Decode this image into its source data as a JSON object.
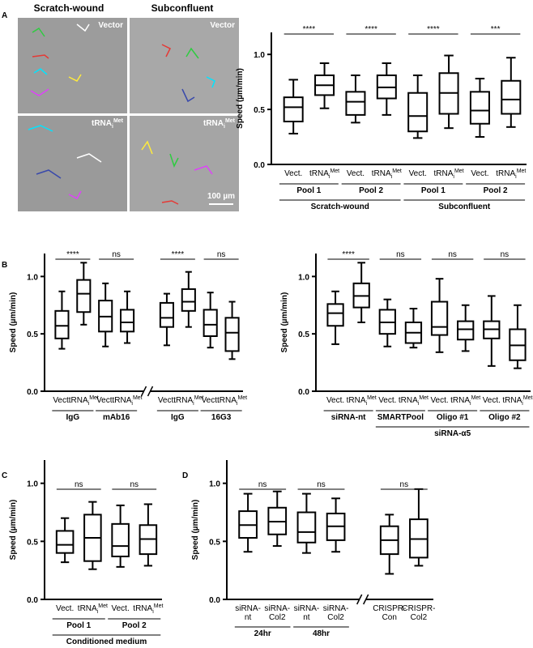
{
  "micrographs": {
    "columns": [
      "Scratch-wound",
      "Subconfluent"
    ],
    "rows": [
      "Vector",
      {
        "text": "tRNA",
        "sub": "i",
        "sup": "Met"
      }
    ],
    "scale_bar": "100 µm"
  },
  "chart_data": [
    {
      "type": "box",
      "panel": "A",
      "ylabel": "Speed (µm/min)",
      "ylim": [
        0,
        1.2
      ],
      "yticks": [
        {
          "value": 0,
          "label": "0.0"
        },
        {
          "value": 0.5,
          "label": "0.5"
        },
        {
          "value": 1,
          "label": "1.0"
        }
      ],
      "categories": [
        "Vect.",
        {
          "text": "tRNA",
          "sub": "i",
          "sup": "Met"
        },
        "Vect.",
        {
          "text": "tRNA",
          "sub": "i",
          "sup": "Met"
        },
        "Vect.",
        {
          "text": "tRNA",
          "sub": "i",
          "sup": "Met"
        },
        "Vect.",
        {
          "text": "tRNA",
          "sub": "i",
          "sup": "Met"
        }
      ],
      "boxes": [
        {
          "min": 0.28,
          "q1": 0.39,
          "median": 0.52,
          "q3": 0.61,
          "max": 0.77
        },
        {
          "min": 0.51,
          "q1": 0.63,
          "median": 0.72,
          "q3": 0.81,
          "max": 0.92
        },
        {
          "min": 0.38,
          "q1": 0.45,
          "median": 0.57,
          "q3": 0.66,
          "max": 0.81
        },
        {
          "min": 0.45,
          "q1": 0.6,
          "median": 0.7,
          "q3": 0.81,
          "max": 0.92
        },
        {
          "min": 0.24,
          "q1": 0.3,
          "median": 0.44,
          "q3": 0.65,
          "max": 0.81
        },
        {
          "min": 0.33,
          "q1": 0.46,
          "median": 0.65,
          "q3": 0.83,
          "max": 0.99
        },
        {
          "min": 0.25,
          "q1": 0.37,
          "median": 0.49,
          "q3": 0.66,
          "max": 0.78
        },
        {
          "min": 0.34,
          "q1": 0.46,
          "median": 0.59,
          "q3": 0.76,
          "max": 0.97
        }
      ],
      "significance": [
        {
          "from": 0,
          "to": 1,
          "label": "****"
        },
        {
          "from": 2,
          "to": 3,
          "label": "****"
        },
        {
          "from": 4,
          "to": 5,
          "label": "****"
        },
        {
          "from": 6,
          "to": 7,
          "label": "***"
        }
      ],
      "groups": [
        {
          "from": 0,
          "to": 1,
          "label": "Pool 1"
        },
        {
          "from": 2,
          "to": 3,
          "label": "Pool 2"
        },
        {
          "from": 4,
          "to": 5,
          "label": "Pool 1"
        },
        {
          "from": 6,
          "to": 7,
          "label": "Pool 2"
        }
      ],
      "supergroups": [
        {
          "from": 0,
          "to": 3,
          "label": "Scratch-wound"
        },
        {
          "from": 4,
          "to": 7,
          "label": "Subconfluent"
        }
      ]
    },
    {
      "type": "box",
      "panel": "B",
      "ylabel": "Speed (µm/min)",
      "ylim": [
        0,
        1.2
      ],
      "axis_break": 4,
      "yticks": [
        {
          "value": 0,
          "label": "0.0"
        },
        {
          "value": 0.5,
          "label": "0.5"
        },
        {
          "value": 1,
          "label": "1.0"
        }
      ],
      "categories": [
        "Vect.",
        {
          "text": "tRNA",
          "sub": "i",
          "sup": "Met"
        },
        "Vect.",
        {
          "text": "tRNA",
          "sub": "i",
          "sup": "Met"
        },
        "Vect.",
        {
          "text": "tRNA",
          "sub": "i",
          "sup": "Met"
        },
        "Vect.",
        {
          "text": "tRNA",
          "sub": "i",
          "sup": "Met"
        }
      ],
      "boxes": [
        {
          "min": 0.37,
          "q1": 0.46,
          "median": 0.57,
          "q3": 0.7,
          "max": 0.87
        },
        {
          "min": 0.58,
          "q1": 0.69,
          "median": 0.85,
          "q3": 0.97,
          "max": 1.12
        },
        {
          "min": 0.39,
          "q1": 0.52,
          "median": 0.65,
          "q3": 0.79,
          "max": 0.94
        },
        {
          "min": 0.42,
          "q1": 0.52,
          "median": 0.6,
          "q3": 0.71,
          "max": 0.87
        },
        {
          "min": 0.4,
          "q1": 0.56,
          "median": 0.64,
          "q3": 0.77,
          "max": 0.85
        },
        {
          "min": 0.56,
          "q1": 0.7,
          "median": 0.78,
          "q3": 0.89,
          "max": 1.04
        },
        {
          "min": 0.38,
          "q1": 0.48,
          "median": 0.58,
          "q3": 0.71,
          "max": 0.86
        },
        {
          "min": 0.28,
          "q1": 0.35,
          "median": 0.51,
          "q3": 0.64,
          "max": 0.78
        }
      ],
      "significance": [
        {
          "from": 0,
          "to": 1,
          "label": "****"
        },
        {
          "from": 2,
          "to": 3,
          "label": "ns"
        },
        {
          "from": 4,
          "to": 5,
          "label": "****"
        },
        {
          "from": 6,
          "to": 7,
          "label": "ns"
        }
      ],
      "groups": [
        {
          "from": 0,
          "to": 1,
          "label": "IgG"
        },
        {
          "from": 2,
          "to": 3,
          "label": "mAb16"
        },
        {
          "from": 4,
          "to": 5,
          "label": "IgG"
        },
        {
          "from": 6,
          "to": 7,
          "label": "16G3"
        }
      ]
    },
    {
      "type": "box",
      "ylabel": "Speed (µm/min)",
      "ylim": [
        0,
        1.2
      ],
      "yticks": [
        {
          "value": 0,
          "label": "0.0"
        },
        {
          "value": 0.5,
          "label": "0.5"
        },
        {
          "value": 1,
          "label": "1.0"
        }
      ],
      "categories": [
        "Vect.",
        {
          "text": "tRNA",
          "sub": "i",
          "sup": "Met"
        },
        "Vect.",
        {
          "text": "tRNA",
          "sub": "i",
          "sup": "Met"
        },
        "Vect.",
        {
          "text": "tRNA",
          "sub": "i",
          "sup": "Met"
        },
        "Vect.",
        {
          "text": "tRNA",
          "sub": "i",
          "sup": "Met"
        }
      ],
      "boxes": [
        {
          "min": 0.41,
          "q1": 0.57,
          "median": 0.68,
          "q3": 0.76,
          "max": 0.87
        },
        {
          "min": 0.6,
          "q1": 0.73,
          "median": 0.83,
          "q3": 0.94,
          "max": 1.12
        },
        {
          "min": 0.39,
          "q1": 0.5,
          "median": 0.6,
          "q3": 0.71,
          "max": 0.8
        },
        {
          "min": 0.38,
          "q1": 0.42,
          "median": 0.51,
          "q3": 0.6,
          "max": 0.72
        },
        {
          "min": 0.34,
          "q1": 0.49,
          "median": 0.56,
          "q3": 0.78,
          "max": 0.98
        },
        {
          "min": 0.35,
          "q1": 0.45,
          "median": 0.54,
          "q3": 0.61,
          "max": 0.75
        },
        {
          "min": 0.22,
          "q1": 0.46,
          "median": 0.54,
          "q3": 0.61,
          "max": 0.83
        },
        {
          "min": 0.2,
          "q1": 0.27,
          "median": 0.4,
          "q3": 0.54,
          "max": 0.75
        }
      ],
      "significance": [
        {
          "from": 0,
          "to": 1,
          "label": "****"
        },
        {
          "from": 2,
          "to": 3,
          "label": "ns"
        },
        {
          "from": 4,
          "to": 5,
          "label": "ns"
        },
        {
          "from": 6,
          "to": 7,
          "label": "ns"
        }
      ],
      "groups": [
        {
          "from": 0,
          "to": 1,
          "label": "siRNA-nt"
        },
        {
          "from": 2,
          "to": 3,
          "label": "SMARTPool"
        },
        {
          "from": 4,
          "to": 5,
          "label": "Oligo #1"
        },
        {
          "from": 6,
          "to": 7,
          "label": "Oligo #2"
        }
      ],
      "supergroups": [
        {
          "from": 2,
          "to": 7,
          "label": "siRNA-α5"
        }
      ]
    },
    {
      "type": "box",
      "panel": "C",
      "ylabel": "Speed (µm/min)",
      "ylim": [
        0,
        1.2
      ],
      "yticks": [
        {
          "value": 0,
          "label": "0.0"
        },
        {
          "value": 0.5,
          "label": "0.5"
        },
        {
          "value": 1,
          "label": "1.0"
        }
      ],
      "categories": [
        "Vect.",
        {
          "text": "tRNA",
          "sub": "i",
          "sup": "Met"
        },
        "Vect.",
        {
          "text": "tRNA",
          "sub": "i",
          "sup": "Met"
        }
      ],
      "boxes": [
        {
          "min": 0.32,
          "q1": 0.4,
          "median": 0.47,
          "q3": 0.59,
          "max": 0.7
        },
        {
          "min": 0.26,
          "q1": 0.33,
          "median": 0.53,
          "q3": 0.73,
          "max": 0.84
        },
        {
          "min": 0.28,
          "q1": 0.37,
          "median": 0.46,
          "q3": 0.65,
          "max": 0.81
        },
        {
          "min": 0.29,
          "q1": 0.39,
          "median": 0.52,
          "q3": 0.64,
          "max": 0.82
        }
      ],
      "significance": [
        {
          "from": 0,
          "to": 1,
          "label": "ns"
        },
        {
          "from": 2,
          "to": 3,
          "label": "ns"
        }
      ],
      "groups": [
        {
          "from": 0,
          "to": 1,
          "label": "Pool 1"
        },
        {
          "from": 2,
          "to": 3,
          "label": "Pool 2"
        }
      ],
      "supergroups": [
        {
          "from": 0,
          "to": 3,
          "label": "Conditioned medium"
        }
      ]
    },
    {
      "type": "box",
      "panel": "D",
      "ylabel": "Speed (µm/min)",
      "ylim": [
        0,
        1.2
      ],
      "axis_break": 4,
      "yticks": [
        {
          "value": 0,
          "label": "0.0"
        },
        {
          "value": 0.5,
          "label": "0.5"
        },
        {
          "value": 1,
          "label": "1.0"
        }
      ],
      "categories": [
        {
          "lines": [
            "siRNA-",
            "nt"
          ]
        },
        {
          "lines": [
            "siRNA-",
            "Col2"
          ]
        },
        {
          "lines": [
            "siRNA-",
            "nt"
          ]
        },
        {
          "lines": [
            "siRNA-",
            "Col2"
          ]
        },
        {
          "lines": [
            "CRISPR-",
            "Con"
          ]
        },
        {
          "lines": [
            "CRISPR-",
            "Col2"
          ]
        }
      ],
      "boxes": [
        {
          "min": 0.41,
          "q1": 0.53,
          "median": 0.64,
          "q3": 0.76,
          "max": 0.91
        },
        {
          "min": 0.46,
          "q1": 0.56,
          "median": 0.67,
          "q3": 0.79,
          "max": 0.93
        },
        {
          "min": 0.4,
          "q1": 0.49,
          "median": 0.58,
          "q3": 0.75,
          "max": 0.91
        },
        {
          "min": 0.41,
          "q1": 0.51,
          "median": 0.63,
          "q3": 0.74,
          "max": 0.87
        },
        {
          "min": 0.22,
          "q1": 0.39,
          "median": 0.51,
          "q3": 0.63,
          "max": 0.73
        },
        {
          "min": 0.29,
          "q1": 0.36,
          "median": 0.52,
          "q3": 0.69,
          "max": 0.95
        }
      ],
      "significance": [
        {
          "from": 0,
          "to": 1,
          "label": "ns"
        },
        {
          "from": 2,
          "to": 3,
          "label": "ns"
        },
        {
          "from": 4,
          "to": 5,
          "label": "ns"
        }
      ],
      "groups": [
        {
          "from": 0,
          "to": 1,
          "label": "24hr"
        },
        {
          "from": 2,
          "to": 3,
          "label": "48hr"
        }
      ]
    }
  ]
}
